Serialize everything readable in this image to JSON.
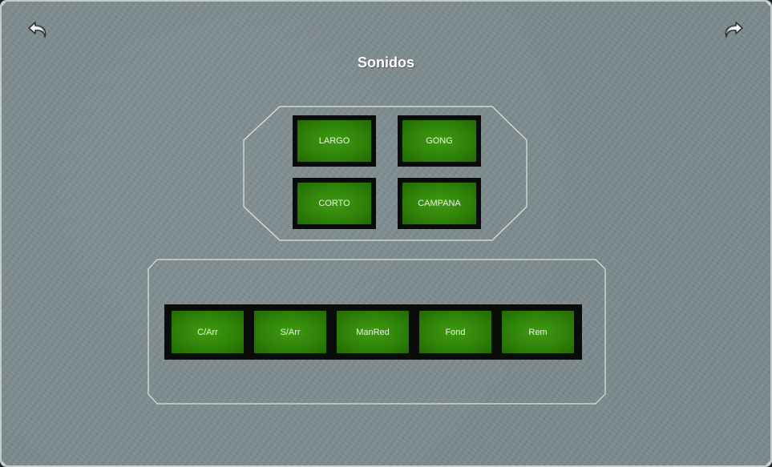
{
  "title": "Sonidos",
  "navigation": {
    "back_icon": "undo-arrow-icon",
    "forward_icon": "redo-arrow-icon"
  },
  "top_group": {
    "buttons": [
      "LARGO",
      "GONG",
      "CORTO",
      "CAMPANA"
    ]
  },
  "bottom_group": {
    "buttons": [
      "C/Arr",
      "S/Arr",
      "ManRed",
      "Fond",
      "Rem"
    ]
  },
  "colors": {
    "background": "#7d8b8f",
    "button_face": "#2f8408",
    "button_frame": "#0a0c0a",
    "text": "#ffffff",
    "outline": "#d9dfe1"
  }
}
